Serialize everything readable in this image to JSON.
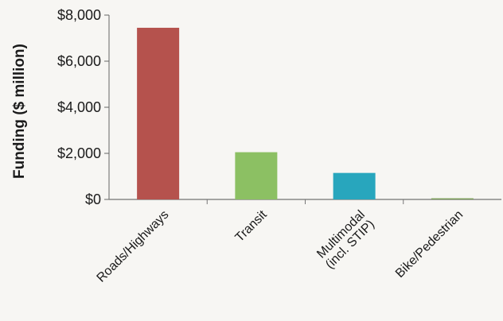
{
  "chart_data": {
    "type": "bar",
    "title": "",
    "xlabel": "",
    "ylabel": "Funding ($ million)",
    "ylim": [
      0,
      8000
    ],
    "yticks": [
      0,
      2000,
      4000,
      6000,
      8000
    ],
    "ytick_labels": [
      "$0",
      "$2,000",
      "$4,000",
      "$6,000",
      "$8,000"
    ],
    "categories": [
      {
        "lines": [
          "Roads/Highways"
        ]
      },
      {
        "lines": [
          "Transit"
        ]
      },
      {
        "lines": [
          "Multimodal",
          "(incl. STIP)"
        ]
      },
      {
        "lines": [
          "Bike/Pedestrian"
        ]
      }
    ],
    "values": [
      7450,
      2050,
      1150,
      50
    ],
    "colors": [
      "#b5524d",
      "#8cc063",
      "#28a6bd",
      "#7da05a"
    ],
    "grid": false,
    "legend": "none"
  }
}
